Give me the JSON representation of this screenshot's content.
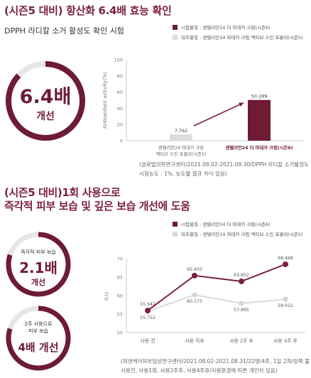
{
  "section1": {
    "title": "(시즌5 대비) 항산화 6.4배 효능 확인",
    "subtitle": "DPPH 라디칼 소거 활성도 확인 시험",
    "badge": {
      "value": "6.4배",
      "label": "개선",
      "ring_fraction": 0.87
    },
    "legend": [
      {
        "label": "시험물질 : 센텔리안24 더 마데카 크림(시즌6)",
        "color": "#6e1b34"
      },
      {
        "label": "대조물질 : 센텔리안24 마데카 크림 맥티브 스킨 포뮬러(시즌5)",
        "color": "#dcdcdc"
      }
    ],
    "note_line1": "(글로벌의학연구센터/2021.08.02-2021.09.30/DPPH 라디칼 소거활성도 확인/",
    "note_line2": "시험농도 : 1%, 농도별 결과 차이 있음)"
  },
  "section2": {
    "title_line1": "(시즌5 대비)1회 사용으로",
    "title_line2": "즉각적 피부 보습 및 깊은 보습 개선에 도움",
    "badge1": {
      "top": "즉각적 피부 보습",
      "value": "2.1배",
      "label": "개선",
      "ring_fraction": 0.8
    },
    "badge2": {
      "top_line1": "2주 사용으로",
      "top_line2": "피부 보습",
      "value": "4배 개선",
      "ring_fraction": 0.8
    },
    "legend": [
      {
        "label": "시험물질 : 센텔리안24 더 마데카 크림(시즌6)",
        "color": "#6e1b34"
      },
      {
        "label": "대조물질 : 센텔리안24 마데카 크림 맥티브 스킨 포뮬러(시즌5)",
        "color": "#dcdcdc"
      }
    ],
    "note_line1": "(피엔케이피부임상연구센터/2021.08.02-2021.08.31/22명/4주, 1일 2회/양쪽 볼 부위,",
    "note_line2": "사용전, 사용1회, 사용2주후, 사용4주후/사용환경에 따른 개인차 있음)"
  },
  "chart_data": [
    {
      "type": "bar",
      "ylabel": "Antioxidant activity(%)",
      "ylim": [
        0,
        100
      ],
      "yticks": [
        "0",
        "20",
        "40",
        "60",
        "80",
        "100"
      ],
      "categories": [
        "센텔리안24 마데카 크림 맥티브 스킨 포뮬러(시즌5)",
        "센텔리안24 더 마데카 크림(시즌6)"
      ],
      "category_lines": [
        [
          "센텔리안24 마데카 크림",
          "맥티브 스킨 포뮬러(시즌5)"
        ],
        [
          "센텔리안24 더 마데카 크림(시즌6)"
        ]
      ],
      "values": [
        7.762,
        50.289
      ],
      "value_labels": [
        "7.762",
        "50.289"
      ],
      "colors": [
        "#dcdcdc",
        "#6e1b34"
      ]
    },
    {
      "type": "line",
      "ylabel": "A.U.",
      "ylim": [
        50,
        70
      ],
      "yticks": [
        "50",
        "55",
        "60",
        "65",
        "70"
      ],
      "categories": [
        "사용 전",
        "사용 직후",
        "사용 2주 후",
        "사용 4주 후"
      ],
      "series": [
        {
          "values": [
            55.947,
            65.403,
            63.852,
            68.468
          ],
          "labels": [
            "55.947",
            "65.403",
            "63.852",
            "68.468"
          ],
          "color": "#7a1f3d"
        },
        {
          "values": [
            55.752,
            60.173,
            57.895,
            59.012
          ],
          "labels": [
            "55.752",
            "60.173",
            "57.895",
            "59.012"
          ],
          "color": "#d4d4d4"
        }
      ]
    }
  ]
}
